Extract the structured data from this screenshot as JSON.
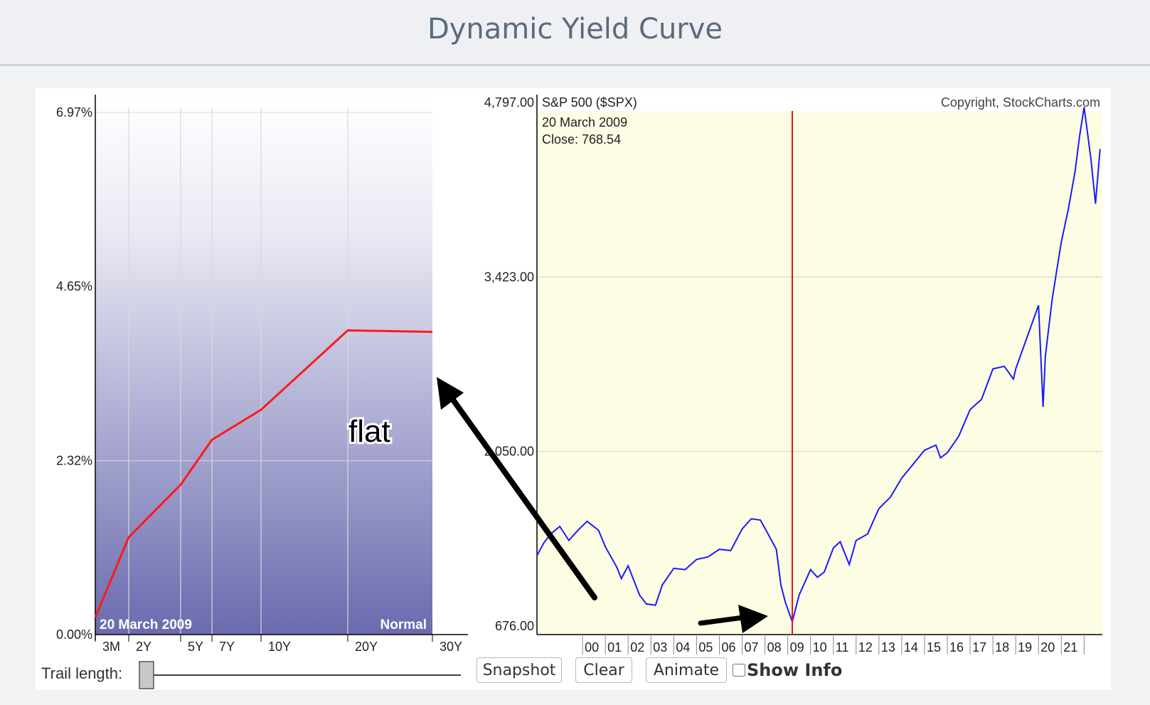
{
  "header": {
    "title": "Dynamic Yield Curve"
  },
  "yield_panel": {
    "y_labels": [
      "6.97%",
      "4.65%",
      "2.32%",
      "0.00%"
    ],
    "date_label": "20  March 2009",
    "shape_label": "Normal",
    "annotation": "flat",
    "trail_label": "Trail length:"
  },
  "spx_panel": {
    "y_labels": [
      "4,797.00",
      "3,423.00",
      "2,050.00",
      "676.00"
    ],
    "title": "S&P 500 ($SPX)",
    "copyright": "Copyright, StockCharts.com",
    "date_label": "20  March 2009",
    "close_label": "Close: 768.54"
  },
  "controls": {
    "snapshot_label": "Snapshot",
    "clear_label": "Clear",
    "animate_label": "Animate",
    "show_info_label": "Show Info"
  },
  "colors": {
    "curve": "#ff1a1a",
    "spx_line": "#1a1aff",
    "marker": "#ee1111",
    "gradient_bottom": "#6a6aaf",
    "spx_bg": "#fdfde4"
  },
  "chart_data": [
    {
      "type": "line",
      "categories": [
        "3M",
        "2Y",
        "5Y",
        "7Y",
        "10Y",
        "20Y",
        "30Y"
      ],
      "maturities_years": [
        0.25,
        2,
        5,
        7,
        10,
        20,
        30
      ],
      "values": [
        0.23,
        1.3,
        2.0,
        2.6,
        3.0,
        4.06,
        4.04
      ],
      "ylim": [
        0,
        6.97
      ]
    },
    {
      "type": "line",
      "xticks": [
        "00",
        "01",
        "02",
        "03",
        "04",
        "05",
        "06",
        "07",
        "08",
        "09",
        "10",
        "11",
        "12",
        "13",
        "14",
        "15",
        "16",
        "17",
        "18",
        "19",
        "20",
        "21"
      ],
      "x": [
        1998.0,
        1998.3,
        1998.6,
        1999.0,
        1999.4,
        1999.8,
        2000.2,
        2000.7,
        2001.0,
        2001.5,
        2001.7,
        2002.0,
        2002.5,
        2002.8,
        2003.2,
        2003.5,
        2004.0,
        2004.5,
        2005.0,
        2005.5,
        2006.0,
        2006.5,
        2007.0,
        2007.4,
        2007.8,
        2008.2,
        2008.5,
        2008.7,
        2008.9,
        2009.2,
        2009.5,
        2010.0,
        2010.3,
        2010.6,
        2011.0,
        2011.3,
        2011.7,
        2012.0,
        2012.5,
        2013.0,
        2013.5,
        2014.0,
        2014.5,
        2015.0,
        2015.5,
        2015.7,
        2016.0,
        2016.5,
        2017.0,
        2017.5,
        2018.0,
        2018.5,
        2018.9,
        2019.0,
        2019.5,
        2020.0,
        2020.2,
        2020.3,
        2020.6,
        2021.0,
        2021.3,
        2021.6,
        2021.8,
        2022.0,
        2022.3,
        2022.5,
        2022.7
      ],
      "values": [
        1230,
        1330,
        1400,
        1460,
        1350,
        1430,
        1500,
        1430,
        1300,
        1140,
        1050,
        1150,
        920,
        850,
        840,
        1000,
        1130,
        1120,
        1200,
        1220,
        1280,
        1270,
        1440,
        1520,
        1510,
        1380,
        1280,
        1000,
        860,
        710,
        920,
        1120,
        1060,
        1100,
        1290,
        1340,
        1160,
        1350,
        1400,
        1600,
        1690,
        1840,
        1950,
        2060,
        2100,
        2000,
        2040,
        2170,
        2380,
        2460,
        2700,
        2720,
        2620,
        2700,
        2950,
        3200,
        2400,
        2800,
        3250,
        3700,
        3950,
        4250,
        4530,
        4760,
        4350,
        4000,
        4430
      ],
      "ylim": [
        676,
        4797
      ]
    }
  ]
}
